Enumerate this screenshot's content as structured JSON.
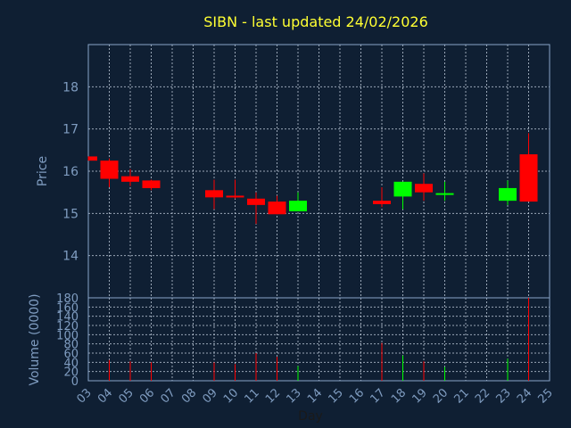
{
  "chart_data": {
    "type": "candlestick",
    "title": "SIBN - last updated 24/02/2026",
    "xlabel": "Day",
    "ylabel_price": "Price",
    "ylabel_volume": "Volume (0000)",
    "price_ylim": [
      13,
      19
    ],
    "price_ticks": [
      14,
      15,
      16,
      17,
      18
    ],
    "volume_ylim": [
      0,
      180
    ],
    "volume_ticks": [
      0,
      20,
      40,
      60,
      80,
      100,
      120,
      140,
      160,
      180
    ],
    "x_ticks": [
      "03",
      "04",
      "05",
      "06",
      "07",
      "08",
      "09",
      "10",
      "11",
      "12",
      "13",
      "14",
      "15",
      "16",
      "17",
      "18",
      "19",
      "20",
      "21",
      "22",
      "23",
      "24",
      "25"
    ],
    "grid": true,
    "colors": {
      "up": "#00ff00",
      "down": "#ff0000",
      "background": "#0f1f33",
      "title": "#ffff33",
      "axis_text": "#7f9cc0"
    },
    "candles": [
      {
        "day": "03",
        "open": 16.35,
        "high": 16.35,
        "low": 16.25,
        "close": 16.25,
        "volume": 0
      },
      {
        "day": "04",
        "open": 16.25,
        "high": 16.3,
        "low": 15.62,
        "close": 15.82,
        "volume": 45
      },
      {
        "day": "05",
        "open": 15.88,
        "high": 16.05,
        "low": 15.65,
        "close": 15.75,
        "volume": 42
      },
      {
        "day": "06",
        "open": 15.78,
        "high": 15.8,
        "low": 15.55,
        "close": 15.6,
        "volume": 40
      },
      {
        "day": "09",
        "open": 15.55,
        "high": 15.8,
        "low": 15.1,
        "close": 15.38,
        "volume": 40
      },
      {
        "day": "10",
        "open": 15.42,
        "high": 15.8,
        "low": 15.35,
        "close": 15.4,
        "volume": 36
      },
      {
        "day": "11",
        "open": 15.35,
        "high": 15.5,
        "low": 14.75,
        "close": 15.2,
        "volume": 60
      },
      {
        "day": "12",
        "open": 15.28,
        "high": 15.42,
        "low": 14.98,
        "close": 14.98,
        "volume": 52
      },
      {
        "day": "13",
        "open": 15.05,
        "high": 15.5,
        "low": 15.05,
        "close": 15.3,
        "volume": 32
      },
      {
        "day": "17",
        "open": 15.3,
        "high": 15.62,
        "low": 15.15,
        "close": 15.22,
        "volume": 82
      },
      {
        "day": "18",
        "open": 15.4,
        "high": 15.75,
        "low": 15.1,
        "close": 15.75,
        "volume": 55
      },
      {
        "day": "19",
        "open": 15.7,
        "high": 15.95,
        "low": 15.3,
        "close": 15.5,
        "volume": 42
      },
      {
        "day": "20",
        "open": 15.45,
        "high": 15.75,
        "low": 15.3,
        "close": 15.48,
        "volume": 30
      },
      {
        "day": "23",
        "open": 15.3,
        "high": 15.78,
        "low": 15.2,
        "close": 15.6,
        "volume": 48
      },
      {
        "day": "24",
        "open": 16.4,
        "high": 16.9,
        "low": 15.28,
        "close": 15.28,
        "volume": 182
      }
    ]
  }
}
